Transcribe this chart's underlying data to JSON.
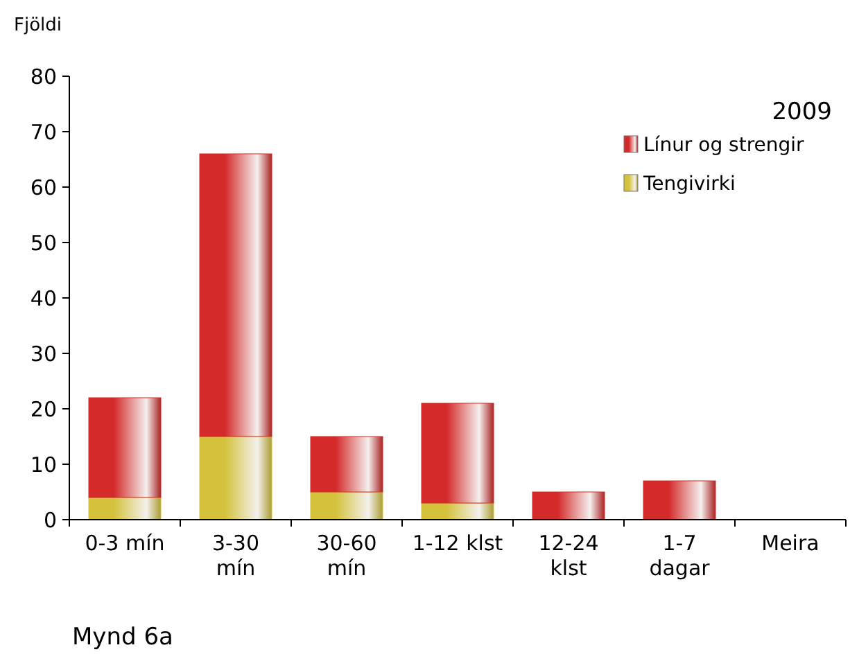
{
  "chart_data": {
    "type": "bar",
    "stacked": true,
    "ylabel": "Fjöldi",
    "legend_title": "2009",
    "legend": "top right",
    "categories": [
      "0-3 mín",
      "3-30\nmín",
      "30-60\nmín",
      "1-12 klst",
      "12-24\nklst",
      "1-7\ndagar",
      "Meira"
    ],
    "series": [
      {
        "name": "Tengivirki",
        "color": "#d4c23c",
        "values": [
          4,
          15,
          5,
          3,
          0,
          0,
          0
        ]
      },
      {
        "name": "Línur og strengir",
        "color": "#d42a2a",
        "values": [
          18,
          51,
          10,
          18,
          5,
          7,
          0
        ]
      }
    ],
    "ylim": [
      0,
      80
    ],
    "yticks": [
      0,
      10,
      20,
      30,
      40,
      50,
      60,
      70,
      80
    ],
    "annotations": [
      "Mynd 6a"
    ]
  }
}
